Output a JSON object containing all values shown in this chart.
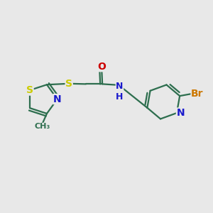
{
  "background_color": "#e8e8e8",
  "bond_color": "#2d6e4e",
  "bond_width": 1.6,
  "atom_colors": {
    "S": "#cccc00",
    "N": "#1a1acc",
    "O": "#cc0000",
    "Br": "#cc7700",
    "C": "#2d6e4e",
    "H": "#2d6e4e"
  },
  "font_size": 9,
  "figsize": [
    3.0,
    3.0
  ],
  "dpi": 100
}
